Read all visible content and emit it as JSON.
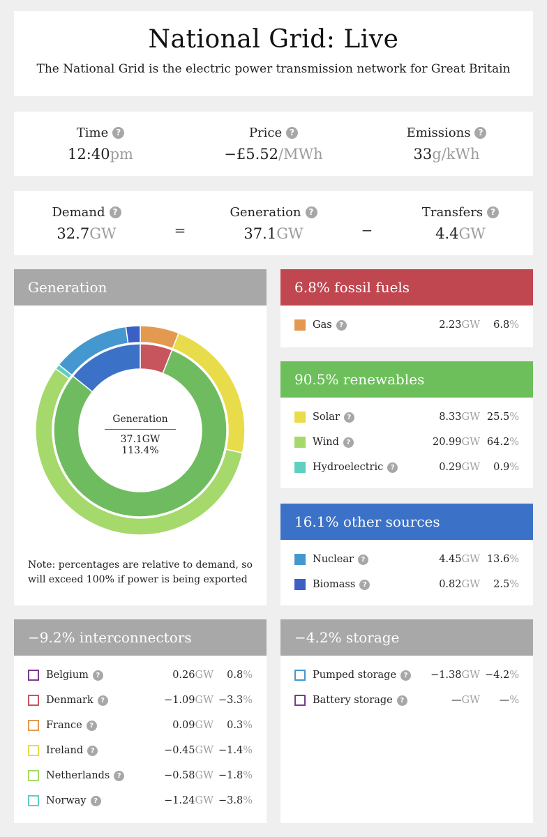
{
  "header": {
    "title": "National Grid: Live",
    "subtitle": "The National Grid is the electric power transmission network for Great Britain"
  },
  "stats": {
    "time": {
      "label": "Time",
      "value": "12:40",
      "unit": "pm"
    },
    "price": {
      "label": "Price",
      "value": "−£5.52",
      "unit": "/MWh"
    },
    "emissions": {
      "label": "Emissions",
      "value": "33",
      "unit": "g/kWh"
    }
  },
  "balance": {
    "demand": {
      "label": "Demand",
      "value": "32.7",
      "unit": "GW"
    },
    "equals": "=",
    "generation": {
      "label": "Generation",
      "value": "37.1",
      "unit": "GW"
    },
    "minus": "−",
    "transfers": {
      "label": "Transfers",
      "value": "4.4",
      "unit": "GW"
    }
  },
  "generation_panel": {
    "title": "Generation",
    "center_label": "Generation",
    "center_gw": "37.1GW",
    "center_pct": "113.4%",
    "note": "Note: percentages are relative to demand, so will exceed 100% if power is being exported"
  },
  "fossil": {
    "title": "6.8% fossil fuels",
    "rows": [
      {
        "name": "Gas",
        "gw": "2.23",
        "pct": "6.8",
        "color": "#e39a50"
      }
    ]
  },
  "renewables": {
    "title": "90.5% renewables",
    "rows": [
      {
        "name": "Solar",
        "gw": "8.33",
        "pct": "25.5",
        "color": "#e9dc4b"
      },
      {
        "name": "Wind",
        "gw": "20.99",
        "pct": "64.2",
        "color": "#a5d96b"
      },
      {
        "name": "Hydroelectric",
        "gw": "0.29",
        "pct": "0.9",
        "color": "#5fcfc2"
      }
    ]
  },
  "other": {
    "title": "16.1% other sources",
    "rows": [
      {
        "name": "Nuclear",
        "gw": "4.45",
        "pct": "13.6",
        "color": "#4598cf"
      },
      {
        "name": "Biomass",
        "gw": "0.82",
        "pct": "2.5",
        "color": "#3b5fc5"
      }
    ]
  },
  "interconnectors": {
    "title": "−9.2% interconnectors",
    "rows": [
      {
        "name": "Belgium",
        "gw": "0.26",
        "pct": "0.8",
        "color": "#7a3c8a"
      },
      {
        "name": "Denmark",
        "gw": "−1.09",
        "pct": "−3.3",
        "color": "#c7555e"
      },
      {
        "name": "France",
        "gw": "0.09",
        "pct": "0.3",
        "color": "#e39a50"
      },
      {
        "name": "Ireland",
        "gw": "−0.45",
        "pct": "−1.4",
        "color": "#e9dc4b"
      },
      {
        "name": "Netherlands",
        "gw": "−0.58",
        "pct": "−1.8",
        "color": "#a5d96b"
      },
      {
        "name": "Norway",
        "gw": "−1.24",
        "pct": "−3.8",
        "color": "#5fcfc2"
      }
    ]
  },
  "storage": {
    "title": "−4.2% storage",
    "rows": [
      {
        "name": "Pumped storage",
        "gw": "−1.38",
        "pct": "−4.2",
        "color": "#4598cf"
      },
      {
        "name": "Battery storage",
        "gw": "—",
        "pct": "—",
        "color": "#7a3c8a"
      }
    ]
  },
  "units": {
    "gw": "GW",
    "pct": "%"
  },
  "help_glyph": "?",
  "donut": {
    "outer": [
      {
        "name": "Gas",
        "pct": 6.8,
        "color": "#e39a50"
      },
      {
        "name": "Solar",
        "pct": 25.5,
        "color": "#e9dc4b"
      },
      {
        "name": "Wind",
        "pct": 64.2,
        "color": "#a5d96b"
      },
      {
        "name": "Hydroelectric",
        "pct": 0.9,
        "color": "#5fcfc2"
      },
      {
        "name": "Nuclear",
        "pct": 13.6,
        "color": "#4598cf"
      },
      {
        "name": "Biomass",
        "pct": 2.5,
        "color": "#3b5fc5"
      }
    ],
    "inner": [
      {
        "name": "Fossil fuels",
        "pct": 6.8,
        "color": "#c7555e"
      },
      {
        "name": "Renewables",
        "pct": 90.5,
        "color": "#6ebc5f"
      },
      {
        "name": "Other sources",
        "pct": 16.1,
        "color": "#3b72c8"
      }
    ]
  }
}
